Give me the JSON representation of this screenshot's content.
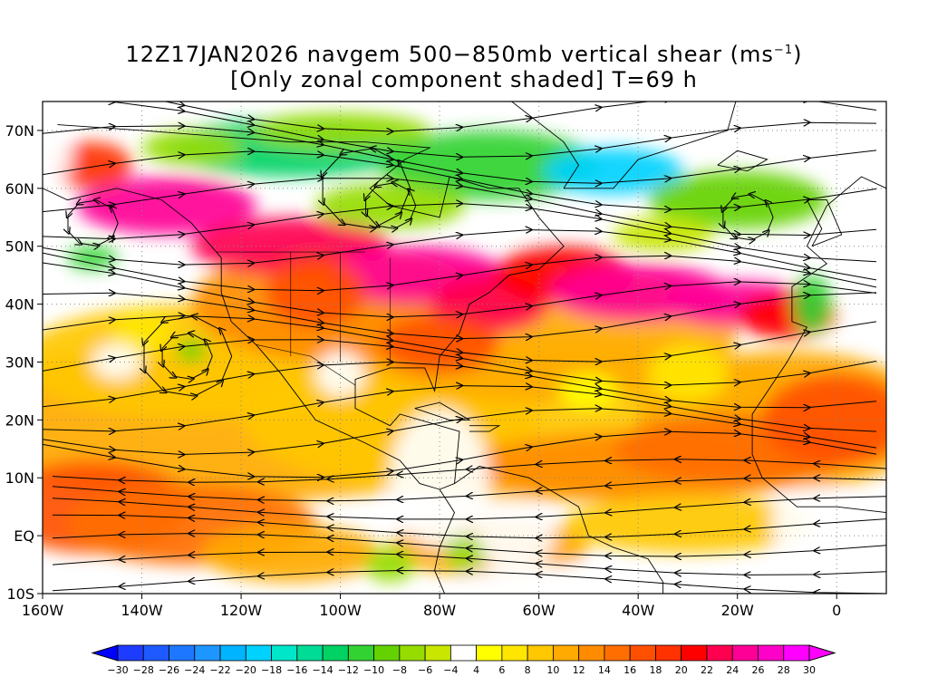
{
  "title": {
    "line1_main": "12Z17JAN2026 navgem 500−850mb vertical shear (ms",
    "line1_sup": "−1",
    "line1_end": ")",
    "line2": "[Only zonal component shaded] T=69 h"
  },
  "map": {
    "lon_range": [
      -160,
      10
    ],
    "lat_range": [
      -10,
      75
    ],
    "lat_labels": [
      "70N",
      "60N",
      "50N",
      "40N",
      "30N",
      "20N",
      "10N",
      "EQ",
      "10S"
    ],
    "lat_values": [
      70,
      60,
      50,
      40,
      30,
      20,
      10,
      0,
      -10
    ],
    "lon_labels": [
      "160W",
      "140W",
      "120W",
      "100W",
      "80W",
      "60W",
      "40W",
      "20W",
      "0"
    ],
    "lon_values": [
      -160,
      -140,
      -120,
      -100,
      -80,
      -60,
      -40,
      -20,
      0
    ],
    "gridlines": "dotted",
    "field": "zonal component of 500-850mb vertical shear",
    "overlay": "streamlines of shear vector"
  },
  "colorbar": {
    "labels": [
      "-30",
      "-28",
      "-26",
      "-24",
      "-22",
      "-20",
      "-18",
      "-16",
      "-14",
      "-12",
      "-10",
      "-8",
      "-6",
      "-4",
      "4",
      "6",
      "8",
      "10",
      "12",
      "14",
      "16",
      "18",
      "20",
      "22",
      "24",
      "26",
      "28",
      "30"
    ],
    "colors": [
      "#1e3cff",
      "#1e5aff",
      "#1e78ff",
      "#1e96ff",
      "#00b4ff",
      "#00d2ff",
      "#00e6c8",
      "#00dc96",
      "#00d264",
      "#32d232",
      "#64d200",
      "#96dc00",
      "#c8e600",
      "#ffffff",
      "#ffff00",
      "#ffe600",
      "#ffc800",
      "#ffaa00",
      "#ff8c00",
      "#ff6e00",
      "#ff5000",
      "#ff3200",
      "#ff0000",
      "#ff0050",
      "#ff0096",
      "#ff00c8",
      "#ff00ff"
    ],
    "under_color": "#0000ff",
    "over_color": "#ff00ff"
  }
}
